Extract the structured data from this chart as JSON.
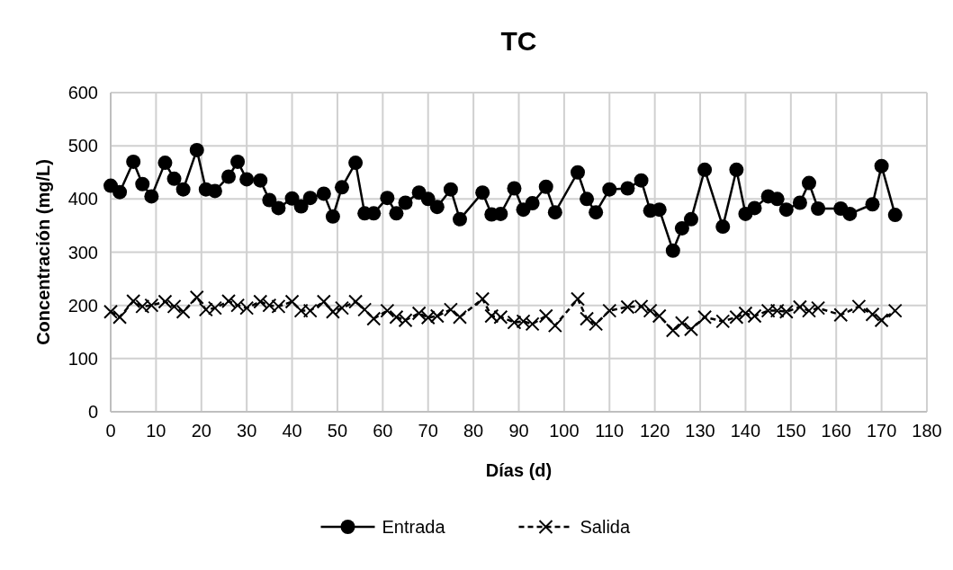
{
  "chart_data": {
    "type": "line",
    "title": "TC",
    "xlabel": "Días (d)",
    "ylabel": "Concentración (mg/L)",
    "xlim": [
      0,
      180
    ],
    "xticks": [
      0,
      10,
      20,
      30,
      40,
      50,
      60,
      70,
      80,
      90,
      100,
      110,
      120,
      130,
      140,
      150,
      160,
      170,
      180
    ],
    "ylim": [
      0,
      600
    ],
    "yticks": [
      0,
      100,
      200,
      300,
      400,
      500,
      600
    ],
    "grid": true,
    "legend": "bottom",
    "series": [
      {
        "name": "Entrada",
        "color": "#000000",
        "marker": "circle",
        "line_style": "solid",
        "x": [
          0,
          2,
          5,
          7,
          9,
          12,
          14,
          16,
          19,
          21,
          23,
          26,
          28,
          30,
          33,
          35,
          37,
          40,
          42,
          44,
          47,
          49,
          51,
          54,
          56,
          58,
          61,
          63,
          65,
          68,
          70,
          72,
          75,
          77,
          82,
          84,
          86,
          89,
          91,
          93,
          96,
          98,
          103,
          105,
          107,
          110,
          114,
          117,
          119,
          121,
          124,
          126,
          128,
          131,
          135,
          138,
          140,
          142,
          145,
          147,
          149,
          152,
          154,
          156,
          161,
          163,
          168,
          170,
          173
        ],
        "values": [
          425,
          413,
          470,
          428,
          405,
          468,
          438,
          418,
          492,
          418,
          415,
          442,
          470,
          437,
          435,
          398,
          383,
          401,
          386,
          402,
          410,
          367,
          422,
          468,
          373,
          373,
          402,
          373,
          393,
          412,
          400,
          385,
          418,
          362,
          412,
          371,
          372,
          420,
          380,
          392,
          423,
          375,
          450,
          400,
          375,
          418,
          420,
          435,
          378,
          380,
          303,
          345,
          362,
          455,
          348,
          455,
          372,
          383,
          405,
          400,
          380,
          393,
          430,
          382,
          382,
          372,
          390,
          462,
          370
        ]
      },
      {
        "name": "Salida",
        "color": "#000000",
        "marker": "cross",
        "line_style": "dashed",
        "x": [
          0,
          2,
          5,
          7,
          9,
          12,
          14,
          16,
          19,
          21,
          23,
          26,
          28,
          30,
          33,
          35,
          37,
          40,
          42,
          44,
          47,
          49,
          51,
          54,
          56,
          58,
          61,
          63,
          65,
          68,
          70,
          72,
          75,
          77,
          82,
          84,
          86,
          89,
          91,
          93,
          96,
          98,
          103,
          105,
          107,
          110,
          114,
          117,
          119,
          121,
          124,
          126,
          128,
          131,
          135,
          138,
          140,
          142,
          145,
          147,
          149,
          152,
          154,
          156,
          161,
          165,
          168,
          170,
          173
        ],
        "values": [
          188,
          178,
          208,
          198,
          200,
          207,
          198,
          188,
          215,
          192,
          195,
          208,
          200,
          195,
          207,
          200,
          198,
          207,
          190,
          190,
          207,
          188,
          195,
          207,
          192,
          175,
          190,
          178,
          172,
          185,
          177,
          180,
          192,
          178,
          212,
          180,
          178,
          168,
          170,
          165,
          180,
          162,
          212,
          175,
          165,
          190,
          197,
          198,
          190,
          180,
          153,
          167,
          155,
          178,
          170,
          178,
          185,
          180,
          190,
          190,
          188,
          197,
          190,
          195,
          182,
          198,
          183,
          172,
          190
        ]
      }
    ]
  }
}
